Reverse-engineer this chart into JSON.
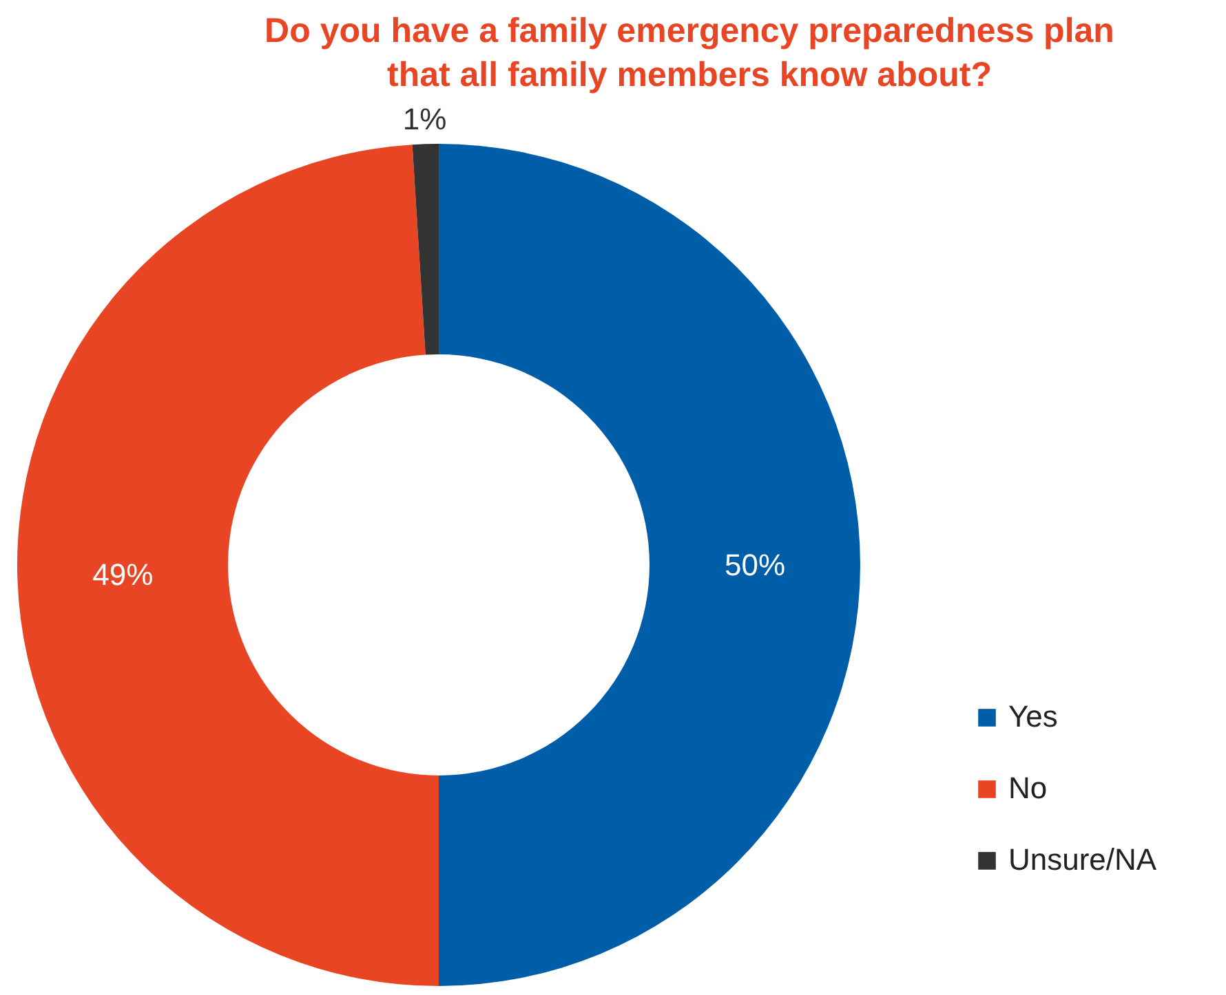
{
  "chart_data": {
    "type": "donut",
    "title": "Do you have a family emergency preparedness plan\nthat all family members know about?",
    "categories": [
      "Yes",
      "No",
      "Unsure/NA"
    ],
    "values": [
      50,
      49,
      1
    ],
    "colors": [
      "#005ea8",
      "#e84524",
      "#333333"
    ],
    "value_labels": [
      "50%",
      "49%",
      "1%"
    ],
    "legend": "right"
  }
}
